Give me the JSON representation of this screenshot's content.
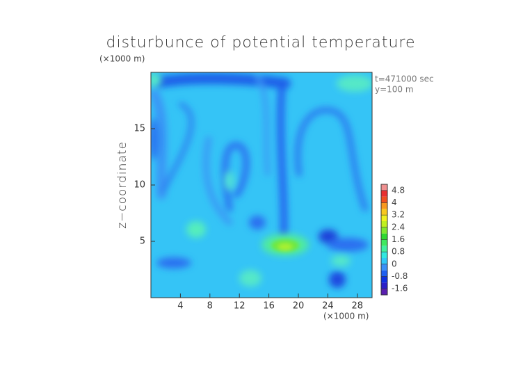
{
  "chart_data": {
    "type": "contour",
    "title": "disturbunce of potential temperature",
    "y_unit": "(×1000 m)",
    "x_unit": "(×1000 m)",
    "ylabel": "z−coordinate",
    "annotations": [
      "t=471000 sec",
      "y=100 m"
    ],
    "xlim": [
      0,
      30
    ],
    "ylim": [
      0,
      20
    ],
    "xticks": [
      4,
      8,
      12,
      16,
      20,
      24,
      28
    ],
    "yticks": [
      5,
      10,
      15
    ],
    "colorbar": {
      "lim": [
        -2.0,
        5.2
      ],
      "ticks": [
        -1.6,
        -0.8,
        0,
        0.8,
        1.6,
        2.4,
        3.2,
        4,
        4.8
      ],
      "colors": [
        "#5a1fb0",
        "#2a1fc8",
        "#1030e0",
        "#2060f0",
        "#3a90f8",
        "#30c8f8",
        "#30e8e0",
        "#40f0a0",
        "#40e860",
        "#30d830",
        "#80e830",
        "#c0f020",
        "#f0f020",
        "#f8c820",
        "#f89820",
        "#f05020",
        "#e83030",
        "#f09090"
      ]
    }
  }
}
